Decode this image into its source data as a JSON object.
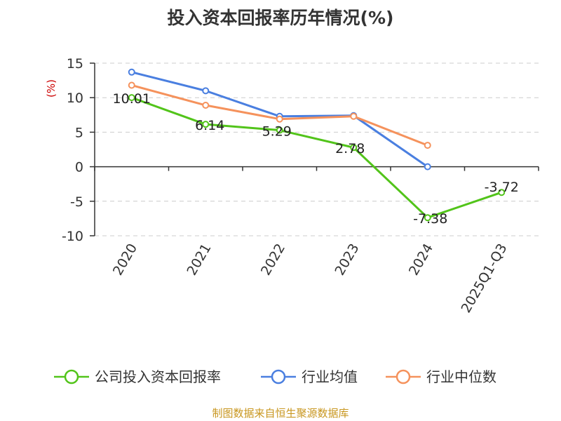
{
  "chart_data": {
    "type": "line",
    "title": "投入资本回报率历年情况(%)",
    "ylabel": "(%)",
    "xlabel": "",
    "categories": [
      "2020",
      "2021",
      "2022",
      "2023",
      "2024",
      "2025Q1-Q3"
    ],
    "ylim": [
      -10,
      15
    ],
    "yticks": [
      "15",
      "10",
      "5",
      "0",
      "-5",
      "-10"
    ],
    "grid": true,
    "legend_position": "bottom",
    "series": [
      {
        "name": "公司投入资本回报率",
        "color": "#52c41a",
        "values": [
          10.01,
          6.14,
          5.29,
          2.78,
          -7.38,
          -3.72
        ],
        "labels": [
          "10.01",
          "6.14",
          "5.29",
          "2.78",
          "-7.38",
          "-3.72"
        ]
      },
      {
        "name": "行业均值",
        "color": "#4a7fe0",
        "values": [
          13.7,
          11.0,
          7.3,
          7.4,
          0.0,
          null
        ]
      },
      {
        "name": "行业中位数",
        "color": "#f5925c",
        "values": [
          11.8,
          8.9,
          6.9,
          7.3,
          3.1,
          null
        ]
      }
    ]
  },
  "source": "制图数据来自恒生聚源数据库",
  "colors": {
    "unit": "#cc0000",
    "source": "#c8961e",
    "axis": "#333333",
    "grid": "#cccccc"
  }
}
